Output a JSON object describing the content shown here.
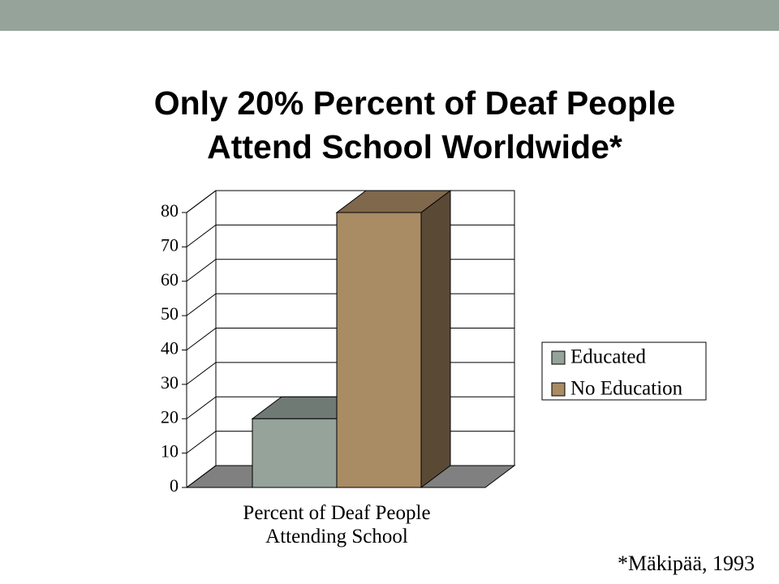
{
  "chart_data": {
    "type": "bar",
    "title": "Only 20% Percent of Deaf People Attend School Worldwide*",
    "categories": [
      "Percent of Deaf People Attending School"
    ],
    "series": [
      {
        "name": "Educated",
        "color": "#95a39a",
        "values": [
          20
        ]
      },
      {
        "name": "No Education",
        "color": "#a98b64",
        "values": [
          80
        ]
      }
    ],
    "ylim": [
      0,
      80
    ],
    "yticks": [
      0,
      10,
      20,
      30,
      40,
      50,
      60,
      70,
      80
    ],
    "grid": true,
    "legend": "right",
    "source": "*Mäkipää, 1993"
  }
}
